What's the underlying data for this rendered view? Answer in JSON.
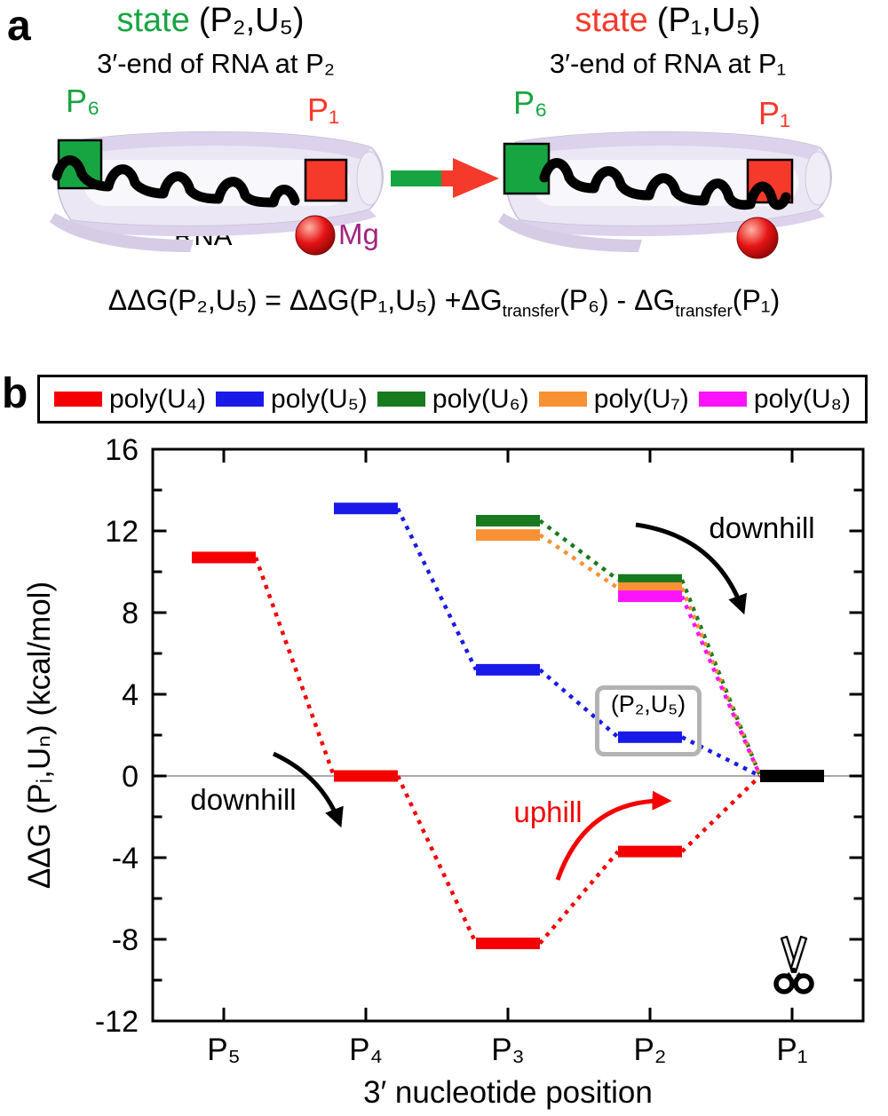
{
  "panel_a": {
    "label": "a",
    "left": {
      "title_state": "state",
      "title_tuple": "(P₂,U₅)",
      "subtitle": "3′-end of RNA at P₂",
      "p6": "P₆",
      "p1": "P₁",
      "rna": "RNA",
      "mg": "Mg"
    },
    "right": {
      "title_state": "state",
      "title_tuple": "(P₁,U₅)",
      "subtitle": "3′-end of RNA at P₁",
      "p6": "P₆",
      "p1": "P₁"
    },
    "equation": {
      "p1": "ΔΔG(P₂,U₅) = ΔΔG(P₁,U₅) +ΔG",
      "sub1": "transfer",
      "p2": "(P₆) - ΔG",
      "sub2": "transfer",
      "p3": "(P₁)"
    },
    "colors": {
      "green": "#17A542",
      "red": "#F5392B",
      "mg_text": "#A1257F"
    }
  },
  "panel_b_label": "b",
  "icons": {
    "scissors": "scissors-cut-site-at-P1"
  },
  "chart_data": {
    "type": "line",
    "subtype": "stepwise free-energy landscape (horizontal level markers joined by dotted lines)",
    "title": "",
    "xlabel": "3′ nucleotide position",
    "ylabel": "ΔΔG (Pᵢ,Uₙ) (kcal/mol)",
    "categories": [
      "P₅",
      "P₄",
      "P₃",
      "P₂",
      "P₁"
    ],
    "ylim": [
      -12,
      16
    ],
    "ytick_major": 4,
    "ytick_minor": 2,
    "grid": false,
    "zero_line": true,
    "legend_position": "top",
    "series": [
      {
        "name": "poly(U₄)",
        "color": "#F40000",
        "values": [
          10.7,
          0.0,
          -8.2,
          -3.7,
          0.0
        ]
      },
      {
        "name": "poly(U₅)",
        "color": "#1A1AE8",
        "values": [
          null,
          13.1,
          5.2,
          1.9,
          0.0
        ]
      },
      {
        "name": "poly(U₆)",
        "color": "#187A1E",
        "values": [
          null,
          null,
          12.5,
          9.6,
          0.0
        ]
      },
      {
        "name": "poly(U₇)",
        "color": "#F79133",
        "values": [
          null,
          null,
          11.8,
          9.2,
          0.0
        ]
      },
      {
        "name": "poly(U₈)",
        "color": "#FB14FB",
        "values": [
          null,
          null,
          null,
          8.8,
          0.0
        ]
      }
    ],
    "reference_marker": {
      "category": "P₁",
      "value": 0.0,
      "color": "#000000"
    },
    "annotations": [
      {
        "id": "downhill-right",
        "text": "downhill",
        "color": "#000000"
      },
      {
        "id": "downhill-left",
        "text": "downhill",
        "color": "#000000"
      },
      {
        "id": "uphill",
        "text": "uphill",
        "color": "#F40000"
      }
    ],
    "highlight_box_label": "(P₂,U₅)"
  }
}
